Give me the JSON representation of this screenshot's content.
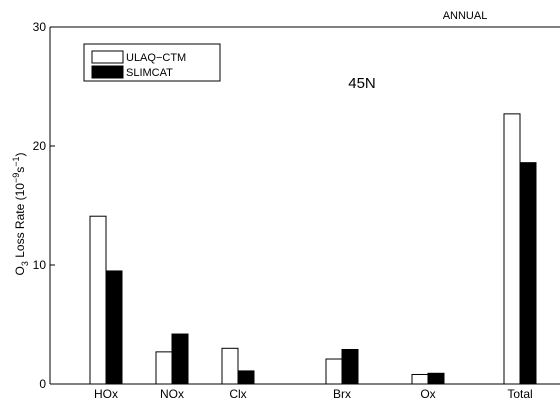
{
  "chart_data": {
    "type": "bar",
    "title": "ANNUAL",
    "annotation": "45N",
    "ylabel": {
      "main": "O",
      "sub": "3",
      "rest": " Loss Rate (10",
      "exp1": "−9",
      "mid": "s",
      "exp2": "−1",
      "end": ")"
    },
    "ylim": [
      0,
      30
    ],
    "yticks": [
      0,
      10,
      20,
      30
    ],
    "categories": [
      "HOx",
      "NOx",
      "Clx",
      "Brx",
      "Ox",
      "Total"
    ],
    "series": [
      {
        "name": "ULAQ−CTM",
        "fill": "#ffffff",
        "values": [
          14.1,
          2.7,
          3.0,
          2.1,
          0.8,
          22.7
        ]
      },
      {
        "name": "SLIMCAT",
        "fill": "#000000",
        "values": [
          9.5,
          4.2,
          1.1,
          2.9,
          0.9,
          18.6
        ]
      }
    ],
    "legend": "top-left",
    "grid": false
  }
}
